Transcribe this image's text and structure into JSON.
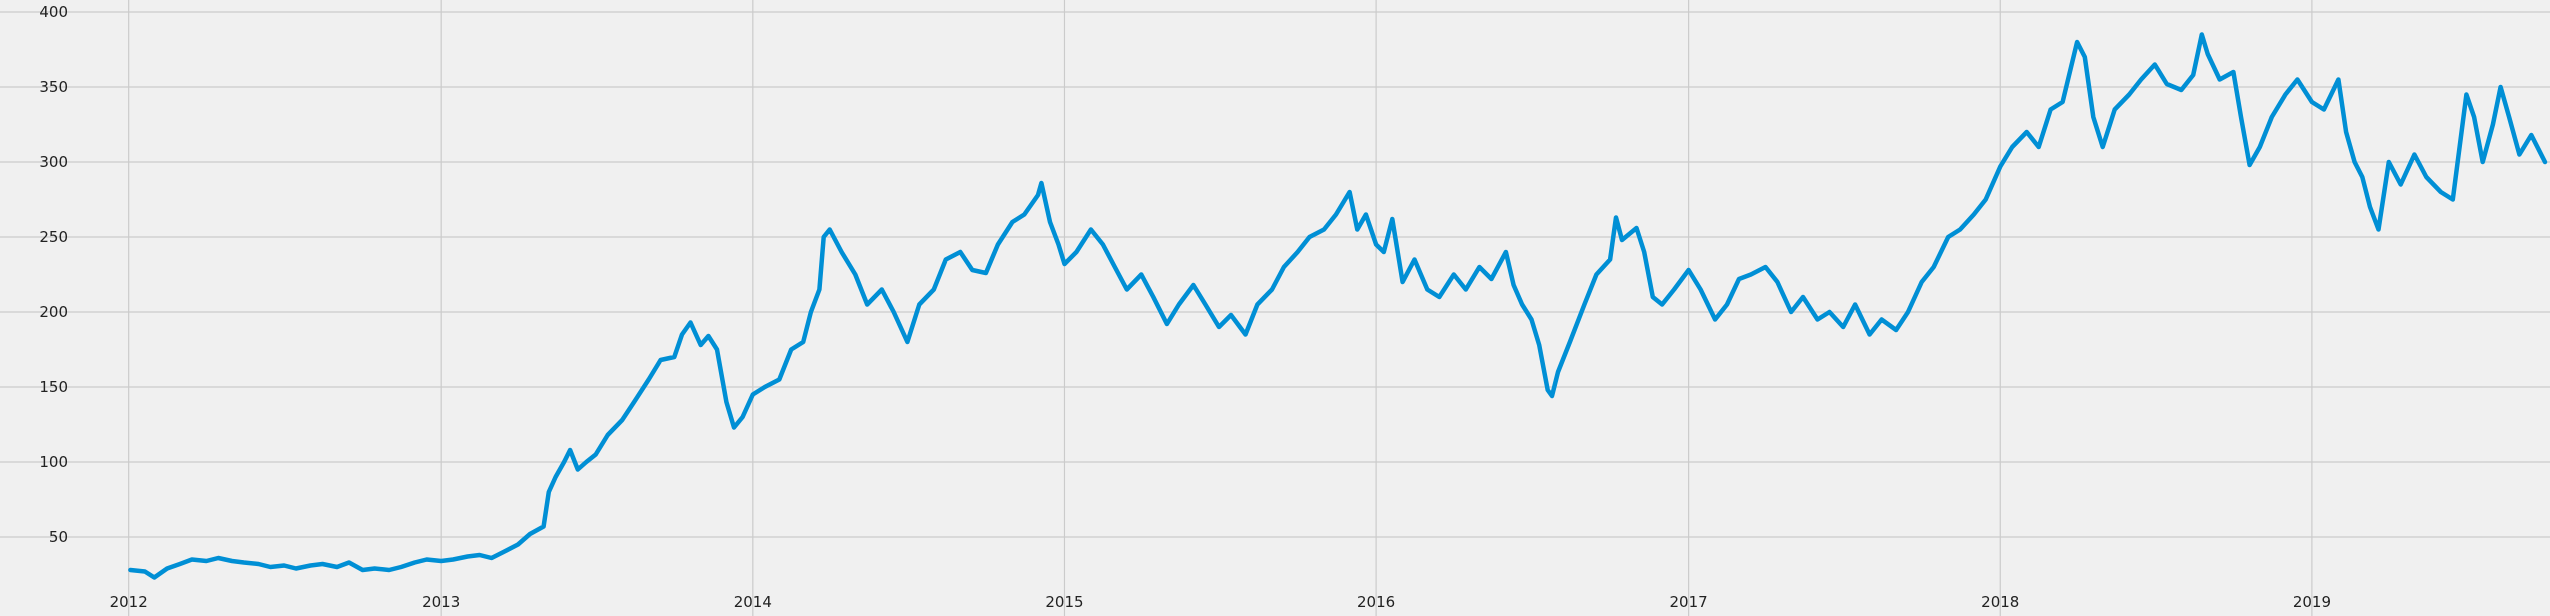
{
  "chart_data": {
    "type": "line",
    "title": "",
    "xlabel": "",
    "ylabel": "",
    "grid": true,
    "xlim": [
      "2011-08-15",
      "2019-10-01"
    ],
    "ylim": [
      12,
      400
    ],
    "x_ticks": [
      "2012-01-01",
      "2013-01-01",
      "2014-01-01",
      "2015-01-01",
      "2016-01-01",
      "2017-01-01",
      "2018-01-01",
      "2019-01-01"
    ],
    "x_tick_labels": [
      "2012",
      "2013",
      "2014",
      "2015",
      "2016",
      "2017",
      "2018",
      "2019"
    ],
    "y_ticks": [
      50,
      100,
      150,
      200,
      250,
      300,
      350,
      400
    ],
    "y_tick_labels": [
      "50",
      "100",
      "150",
      "200",
      "250",
      "300",
      "350",
      "400"
    ],
    "colors": {
      "background": "#f0f0f0",
      "grid": "#cbcbcb",
      "line": "#008fd5",
      "text": "#222222"
    },
    "series": [
      {
        "color": "#008fd5",
        "points": [
          [
            "2012-01-03",
            28
          ],
          [
            "2012-01-20",
            27
          ],
          [
            "2012-01-31",
            23
          ],
          [
            "2012-02-15",
            29
          ],
          [
            "2012-03-01",
            32
          ],
          [
            "2012-03-15",
            35
          ],
          [
            "2012-04-01",
            34
          ],
          [
            "2012-04-15",
            36
          ],
          [
            "2012-05-01",
            34
          ],
          [
            "2012-05-15",
            33
          ],
          [
            "2012-06-01",
            32
          ],
          [
            "2012-06-15",
            30
          ],
          [
            "2012-07-01",
            31
          ],
          [
            "2012-07-15",
            29
          ],
          [
            "2012-08-01",
            31
          ],
          [
            "2012-08-15",
            32
          ],
          [
            "2012-09-01",
            30
          ],
          [
            "2012-09-15",
            33
          ],
          [
            "2012-10-01",
            28
          ],
          [
            "2012-10-15",
            29
          ],
          [
            "2012-11-01",
            28
          ],
          [
            "2012-11-15",
            30
          ],
          [
            "2012-12-01",
            33
          ],
          [
            "2012-12-15",
            35
          ],
          [
            "2013-01-01",
            34
          ],
          [
            "2013-01-15",
            35
          ],
          [
            "2013-02-01",
            37
          ],
          [
            "2013-02-15",
            38
          ],
          [
            "2013-03-01",
            36
          ],
          [
            "2013-03-15",
            40
          ],
          [
            "2013-04-01",
            45
          ],
          [
            "2013-04-15",
            52
          ],
          [
            "2013-05-01",
            57
          ],
          [
            "2013-05-07",
            80
          ],
          [
            "2013-05-15",
            90
          ],
          [
            "2013-05-25",
            100
          ],
          [
            "2013-06-01",
            108
          ],
          [
            "2013-06-10",
            95
          ],
          [
            "2013-06-20",
            100
          ],
          [
            "2013-07-01",
            105
          ],
          [
            "2013-07-15",
            118
          ],
          [
            "2013-08-01",
            128
          ],
          [
            "2013-08-15",
            140
          ],
          [
            "2013-09-01",
            155
          ],
          [
            "2013-09-15",
            168
          ],
          [
            "2013-10-01",
            170
          ],
          [
            "2013-10-10",
            185
          ],
          [
            "2013-10-20",
            193
          ],
          [
            "2013-11-01",
            178
          ],
          [
            "2013-11-10",
            184
          ],
          [
            "2013-11-20",
            175
          ],
          [
            "2013-12-01",
            140
          ],
          [
            "2013-12-10",
            123
          ],
          [
            "2013-12-20",
            130
          ],
          [
            "2014-01-01",
            145
          ],
          [
            "2014-01-15",
            150
          ],
          [
            "2014-02-01",
            155
          ],
          [
            "2014-02-15",
            175
          ],
          [
            "2014-03-01",
            180
          ],
          [
            "2014-03-10",
            200
          ],
          [
            "2014-03-20",
            215
          ],
          [
            "2014-03-25",
            250
          ],
          [
            "2014-04-01",
            255
          ],
          [
            "2014-04-15",
            240
          ],
          [
            "2014-05-01",
            225
          ],
          [
            "2014-05-15",
            205
          ],
          [
            "2014-06-01",
            215
          ],
          [
            "2014-06-15",
            200
          ],
          [
            "2014-07-01",
            180
          ],
          [
            "2014-07-15",
            205
          ],
          [
            "2014-08-01",
            215
          ],
          [
            "2014-08-15",
            235
          ],
          [
            "2014-09-01",
            240
          ],
          [
            "2014-09-15",
            228
          ],
          [
            "2014-10-01",
            226
          ],
          [
            "2014-10-15",
            245
          ],
          [
            "2014-11-01",
            260
          ],
          [
            "2014-11-15",
            265
          ],
          [
            "2014-12-01",
            278
          ],
          [
            "2014-12-05",
            286
          ],
          [
            "2014-12-15",
            260
          ],
          [
            "2014-12-25",
            245
          ],
          [
            "2015-01-01",
            232
          ],
          [
            "2015-01-15",
            240
          ],
          [
            "2015-02-01",
            255
          ],
          [
            "2015-02-15",
            245
          ],
          [
            "2015-03-01",
            230
          ],
          [
            "2015-03-15",
            215
          ],
          [
            "2015-04-01",
            225
          ],
          [
            "2015-04-15",
            210
          ],
          [
            "2015-05-01",
            192
          ],
          [
            "2015-05-15",
            205
          ],
          [
            "2015-06-01",
            218
          ],
          [
            "2015-06-15",
            205
          ],
          [
            "2015-07-01",
            190
          ],
          [
            "2015-07-15",
            198
          ],
          [
            "2015-08-01",
            185
          ],
          [
            "2015-08-15",
            205
          ],
          [
            "2015-09-01",
            215
          ],
          [
            "2015-09-15",
            230
          ],
          [
            "2015-10-01",
            240
          ],
          [
            "2015-10-15",
            250
          ],
          [
            "2015-11-01",
            255
          ],
          [
            "2015-11-15",
            265
          ],
          [
            "2015-12-01",
            280
          ],
          [
            "2015-12-10",
            255
          ],
          [
            "2015-12-20",
            265
          ],
          [
            "2016-01-01",
            245
          ],
          [
            "2016-01-10",
            240
          ],
          [
            "2016-01-20",
            262
          ],
          [
            "2016-02-01",
            220
          ],
          [
            "2016-02-15",
            235
          ],
          [
            "2016-03-01",
            215
          ],
          [
            "2016-03-15",
            210
          ],
          [
            "2016-04-01",
            225
          ],
          [
            "2016-04-15",
            215
          ],
          [
            "2016-05-01",
            230
          ],
          [
            "2016-05-15",
            222
          ],
          [
            "2016-06-01",
            240
          ],
          [
            "2016-06-10",
            218
          ],
          [
            "2016-06-20",
            205
          ],
          [
            "2016-07-01",
            195
          ],
          [
            "2016-07-10",
            178
          ],
          [
            "2016-07-20",
            148
          ],
          [
            "2016-07-25",
            144
          ],
          [
            "2016-08-01",
            160
          ],
          [
            "2016-08-15",
            180
          ],
          [
            "2016-09-01",
            205
          ],
          [
            "2016-09-15",
            225
          ],
          [
            "2016-10-01",
            235
          ],
          [
            "2016-10-08",
            263
          ],
          [
            "2016-10-15",
            248
          ],
          [
            "2016-11-01",
            256
          ],
          [
            "2016-11-10",
            240
          ],
          [
            "2016-11-20",
            210
          ],
          [
            "2016-12-01",
            205
          ],
          [
            "2016-12-15",
            215
          ],
          [
            "2017-01-01",
            228
          ],
          [
            "2017-01-15",
            215
          ],
          [
            "2017-02-01",
            195
          ],
          [
            "2017-02-15",
            205
          ],
          [
            "2017-03-01",
            222
          ],
          [
            "2017-03-15",
            225
          ],
          [
            "2017-04-01",
            230
          ],
          [
            "2017-04-15",
            220
          ],
          [
            "2017-05-01",
            200
          ],
          [
            "2017-05-15",
            210
          ],
          [
            "2017-06-01",
            195
          ],
          [
            "2017-06-15",
            200
          ],
          [
            "2017-07-01",
            190
          ],
          [
            "2017-07-15",
            205
          ],
          [
            "2017-08-01",
            185
          ],
          [
            "2017-08-15",
            195
          ],
          [
            "2017-09-01",
            188
          ],
          [
            "2017-09-15",
            200
          ],
          [
            "2017-10-01",
            220
          ],
          [
            "2017-10-15",
            230
          ],
          [
            "2017-11-01",
            250
          ],
          [
            "2017-11-15",
            255
          ],
          [
            "2017-12-01",
            265
          ],
          [
            "2017-12-15",
            275
          ],
          [
            "2018-01-01",
            297
          ],
          [
            "2018-01-15",
            310
          ],
          [
            "2018-02-01",
            320
          ],
          [
            "2018-02-15",
            310
          ],
          [
            "2018-03-01",
            335
          ],
          [
            "2018-03-15",
            340
          ],
          [
            "2018-04-01",
            380
          ],
          [
            "2018-04-10",
            370
          ],
          [
            "2018-04-20",
            330
          ],
          [
            "2018-05-01",
            310
          ],
          [
            "2018-05-15",
            335
          ],
          [
            "2018-06-01",
            345
          ],
          [
            "2018-06-15",
            355
          ],
          [
            "2018-07-01",
            365
          ],
          [
            "2018-07-15",
            352
          ],
          [
            "2018-08-01",
            348
          ],
          [
            "2018-08-15",
            358
          ],
          [
            "2018-08-25",
            385
          ],
          [
            "2018-09-01",
            372
          ],
          [
            "2018-09-15",
            355
          ],
          [
            "2018-10-01",
            360
          ],
          [
            "2018-10-10",
            330
          ],
          [
            "2018-10-20",
            298
          ],
          [
            "2018-11-01",
            310
          ],
          [
            "2018-11-15",
            330
          ],
          [
            "2018-12-01",
            345
          ],
          [
            "2018-12-15",
            355
          ],
          [
            "2019-01-01",
            340
          ],
          [
            "2019-01-15",
            335
          ],
          [
            "2019-02-01",
            355
          ],
          [
            "2019-02-10",
            320
          ],
          [
            "2019-02-20",
            300
          ],
          [
            "2019-03-01",
            290
          ],
          [
            "2019-03-10",
            270
          ],
          [
            "2019-03-20",
            255
          ],
          [
            "2019-04-01",
            300
          ],
          [
            "2019-04-15",
            285
          ],
          [
            "2019-05-01",
            305
          ],
          [
            "2019-05-15",
            290
          ],
          [
            "2019-06-01",
            280
          ],
          [
            "2019-06-15",
            275
          ],
          [
            "2019-07-01",
            345
          ],
          [
            "2019-07-10",
            330
          ],
          [
            "2019-07-20",
            300
          ],
          [
            "2019-08-01",
            325
          ],
          [
            "2019-08-10",
            350
          ],
          [
            "2019-08-20",
            330
          ],
          [
            "2019-09-01",
            305
          ],
          [
            "2019-09-15",
            318
          ],
          [
            "2019-10-01",
            300
          ]
        ]
      }
    ]
  }
}
